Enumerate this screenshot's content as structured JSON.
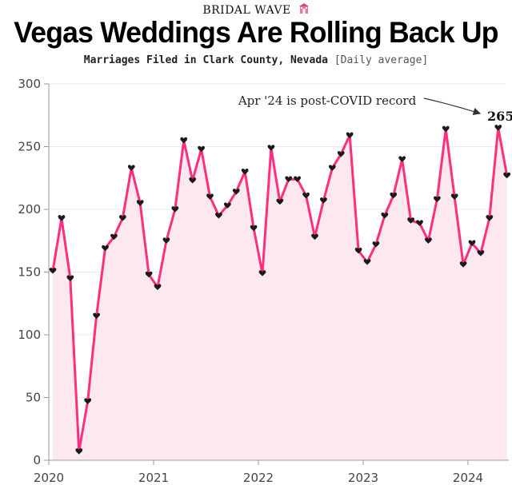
{
  "header": {
    "kicker": "BRIDAL WAVE",
    "kicker_icon": "wedding-chapel-icon",
    "title": "Vegas Weddings Are Rolling Back Up",
    "subtitle": "Marriages Filed in Clark County, Nevada",
    "subtitle_note": "[Daily average]"
  },
  "colors": {
    "line": "#ff2f7d",
    "area": "#fde8ef",
    "marker": "#1a1a1a",
    "grid": "#ececec",
    "axis": "#9a9a9a"
  },
  "chart_data": {
    "type": "line",
    "title": "Vegas Weddings Are Rolling Back Up",
    "subtitle": "Marriages Filed in Clark County, Nevada [Daily average]",
    "xlabel": "",
    "ylabel": "",
    "ylim": [
      0,
      300
    ],
    "yticks": [
      "0",
      "50",
      "100",
      "150",
      "200",
      "250",
      "300"
    ],
    "xticks": [
      "2020",
      "2021",
      "2022",
      "2023",
      "2024"
    ],
    "x_start": "2020-01",
    "grid": true,
    "marker": "heart",
    "x": [
      "2020-01",
      "2020-02",
      "2020-03",
      "2020-04",
      "2020-05",
      "2020-06",
      "2020-07",
      "2020-08",
      "2020-09",
      "2020-10",
      "2020-11",
      "2020-12",
      "2021-01",
      "2021-02",
      "2021-03",
      "2021-04",
      "2021-05",
      "2021-06",
      "2021-07",
      "2021-08",
      "2021-09",
      "2021-10",
      "2021-11",
      "2021-12",
      "2022-01",
      "2022-02",
      "2022-03",
      "2022-04",
      "2022-05",
      "2022-06",
      "2022-07",
      "2022-08",
      "2022-09",
      "2022-10",
      "2022-11",
      "2022-12",
      "2023-01",
      "2023-02",
      "2023-03",
      "2023-04",
      "2023-05",
      "2023-06",
      "2023-07",
      "2023-08",
      "2023-09",
      "2023-10",
      "2023-11",
      "2023-12",
      "2024-01",
      "2024-02",
      "2024-03",
      "2024-04",
      "2024-05"
    ],
    "series": [
      {
        "values": [
          151,
          193,
          145,
          7,
          47,
          115,
          169,
          178,
          193,
          233,
          205,
          148,
          138,
          175,
          200,
          255,
          223,
          248,
          210,
          195,
          203,
          214,
          230,
          185,
          149,
          249,
          206,
          224,
          224,
          211,
          178,
          207,
          233,
          244,
          259,
          167,
          158,
          172,
          195,
          211,
          240,
          191,
          189,
          175,
          208,
          264,
          210,
          156,
          173,
          165,
          193,
          265,
          227
        ]
      }
    ],
    "annotation": {
      "text": "Apr '24 is post-COVID record",
      "value_label": "265",
      "x": "2024-04",
      "y": 265
    }
  }
}
